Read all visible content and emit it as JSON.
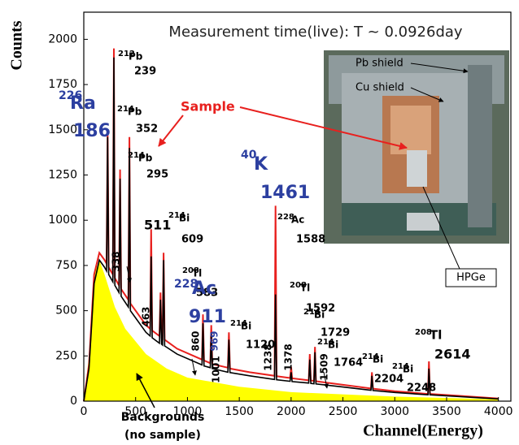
{
  "chart_data": {
    "type": "spectrum",
    "title": "Measurement time(live): T ~ 0.0926day",
    "x_label": "Channel(Energy)",
    "y_label": "Counts",
    "xlim": [
      0,
      4120
    ],
    "ylim": [
      0,
      2150
    ],
    "xticks": [
      0,
      500,
      1000,
      1500,
      2000,
      2500,
      3000,
      3500,
      4000
    ],
    "yticks": [
      0,
      250,
      500,
      750,
      1000,
      1250,
      1500,
      1750,
      2000
    ],
    "series": [
      {
        "name": "Backgrounds",
        "sublabel": "(no sample)",
        "color": "#ffff00",
        "x": [
          0,
          50,
          100,
          150,
          200,
          300,
          400,
          600,
          800,
          1000,
          1500,
          2000,
          3000,
          4000
        ],
        "values": [
          0,
          250,
          700,
          780,
          700,
          520,
          400,
          260,
          180,
          130,
          80,
          50,
          25,
          10
        ]
      },
      {
        "color": "#e8201e",
        "x": [
          0,
          50,
          100,
          150,
          200,
          220,
          230,
          240,
          280,
          290,
          300,
          340,
          350,
          360,
          430,
          440,
          450,
          500,
          600,
          640,
          650,
          660,
          730,
          740,
          750,
          760,
          770,
          780,
          900,
          1140,
          1150,
          1160,
          1220,
          1230,
          1240,
          1390,
          1400,
          1410,
          1600,
          1840,
          1850,
          1860,
          1990,
          2000,
          2010,
          2170,
          2180,
          2190,
          2220,
          2230,
          2240,
          2500,
          2770,
          2780,
          2790,
          3000,
          3320,
          3330,
          3340,
          3600,
          4000
        ],
        "values": [
          0,
          200,
          700,
          820,
          780,
          760,
          1500,
          740,
          700,
          1950,
          680,
          640,
          1280,
          620,
          560,
          1460,
          540,
          500,
          420,
          400,
          950,
          390,
          360,
          600,
          350,
          345,
          820,
          340,
          290,
          230,
          480,
          225,
          210,
          420,
          205,
          185,
          380,
          180,
          160,
          140,
          1080,
          138,
          128,
          190,
          126,
          115,
          260,
          114,
          112,
          300,
          110,
          90,
          70,
          160,
          69,
          55,
          40,
          220,
          40,
          30,
          15
        ]
      },
      {
        "color": "#000000",
        "x": [
          0,
          50,
          100,
          150,
          200,
          220,
          230,
          240,
          280,
          290,
          300,
          340,
          350,
          360,
          430,
          440,
          450,
          500,
          600,
          640,
          650,
          660,
          730,
          740,
          750,
          760,
          770,
          780,
          900,
          1140,
          1150,
          1160,
          1220,
          1230,
          1240,
          1390,
          1400,
          1410,
          1600,
          1840,
          1850,
          1860,
          1990,
          2000,
          2010,
          2170,
          2180,
          2190,
          2220,
          2230,
          2240,
          2500,
          2770,
          2780,
          2790,
          3000,
          3320,
          3330,
          3340,
          3600,
          4000
        ],
        "values": [
          0,
          180,
          650,
          780,
          740,
          720,
          1460,
          700,
          660,
          1900,
          640,
          600,
          1230,
          580,
          520,
          1400,
          500,
          460,
          380,
          360,
          800,
          350,
          320,
          560,
          315,
          310,
          780,
          305,
          260,
          200,
          430,
          195,
          185,
          380,
          180,
          160,
          340,
          158,
          140,
          120,
          590,
          118,
          110,
          160,
          108,
          100,
          230,
          98,
          96,
          270,
          95,
          78,
          60,
          140,
          59,
          48,
          35,
          180,
          35,
          26,
          12
        ]
      }
    ],
    "annotations": [
      {
        "mass": "226",
        "element": "Ra",
        "energy": 186,
        "color": "#2c3fa0"
      },
      {
        "mass": "212",
        "element": "Pb",
        "energy": 239,
        "color": "#000000"
      },
      {
        "mass": "214",
        "element": "Pb",
        "energy": 352,
        "color": "#000000"
      },
      {
        "mass": "214",
        "element": "Pb",
        "energy": 295,
        "color": "#000000"
      },
      {
        "mass": "214",
        "element": "Bi",
        "energy": 609,
        "color": "#000000"
      },
      {
        "mass": "208",
        "element": "Tl",
        "energy": 583,
        "color": "#000000"
      },
      {
        "mass": "228",
        "element": "Ac",
        "energy": 911,
        "color": "#2c3fa0"
      },
      {
        "mass": "214",
        "element": "Bi",
        "energy": 1120,
        "color": "#000000"
      },
      {
        "mass": "40",
        "element": "K",
        "energy": 1461,
        "color": "#2c3fa0"
      },
      {
        "mass": "228",
        "element": "Ac",
        "energy": 1588,
        "color": "#000000"
      },
      {
        "mass": "208",
        "element": "Tl",
        "energy": 1592,
        "color": "#000000"
      },
      {
        "mass": "214",
        "element": "Bi",
        "energy": 1729,
        "color": "#000000"
      },
      {
        "mass": "214",
        "element": "Bi",
        "energy": 1764,
        "color": "#000000"
      },
      {
        "mass": "214",
        "element": "Bi",
        "energy": 2204,
        "color": "#000000"
      },
      {
        "mass": "214",
        "element": "Bi",
        "energy": 2248,
        "color": "#000000"
      },
      {
        "mass": "208",
        "element": "Tl",
        "energy": 2614,
        "color": "#000000"
      }
    ],
    "peak_511": 511,
    "vertical_labels": [
      {
        "energy": 338,
        "color": "#000000"
      },
      {
        "energy": 463,
        "color": "#000000"
      },
      {
        "energy": 860,
        "color": "#000000"
      },
      {
        "energy": 969,
        "color": "#2c3fa0"
      },
      {
        "energy": 1001,
        "color": "#000000"
      },
      {
        "energy": 1238,
        "color": "#000000"
      },
      {
        "energy": 1378,
        "color": "#000000"
      },
      {
        "energy": 1509,
        "color": "#000000"
      }
    ],
    "inset": {
      "pb_shield": "Pb shield",
      "cu_shield": "Cu shield",
      "detector": "HPGe",
      "sample": "Sample"
    }
  }
}
